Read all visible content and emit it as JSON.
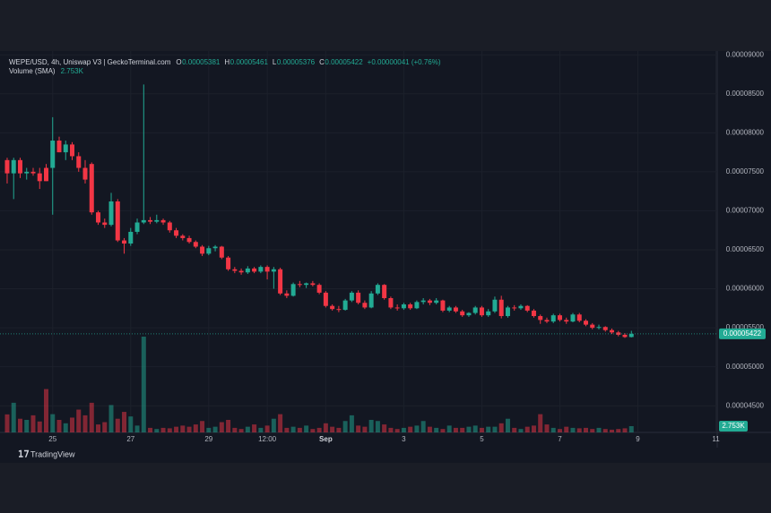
{
  "chart_data": {
    "type": "candlestick",
    "title": "WEPE/USD, 4h, Uniswap V3 | GeckoTerminal.com",
    "ohlc_readout": [
      {
        "label": "O",
        "value": "0.00005381"
      },
      {
        "label": "H",
        "value": "0.00005461"
      },
      {
        "label": "L",
        "value": "0.00005376"
      },
      {
        "label": "C",
        "value": "0.00005422"
      }
    ],
    "change": "+0.00000041 (+0.76%)",
    "volume_title": "Volume (SMA)",
    "volume_readout": "2.753K",
    "last_price_label": "0.00005422",
    "brand": "TradingView",
    "up_color": "#22ab94",
    "down_color": "#f23645",
    "grid": true,
    "xlim": [
      -1.1,
      109.2
    ],
    "xticks": [
      {
        "value": 7,
        "label": "25"
      },
      {
        "value": 19,
        "label": "27"
      },
      {
        "value": 31,
        "label": "29"
      },
      {
        "value": 40,
        "label": "12:00"
      },
      {
        "value": 49,
        "label": "Sep"
      },
      {
        "value": 61,
        "label": "3"
      },
      {
        "value": 73,
        "label": "5"
      },
      {
        "value": 85,
        "label": "7"
      },
      {
        "value": 97,
        "label": "9"
      },
      {
        "value": 109,
        "label": "11"
      }
    ],
    "ylim": [
      4.158e-05,
      9.014e-05
    ],
    "yticks": [
      {
        "value": 9e-05,
        "label": "0.00009000"
      },
      {
        "value": 8.5e-05,
        "label": "0.00008500"
      },
      {
        "value": 8e-05,
        "label": "0.00008000"
      },
      {
        "value": 7.5e-05,
        "label": "0.00007500"
      },
      {
        "value": 7e-05,
        "label": "0.00007000"
      },
      {
        "value": 6.5e-05,
        "label": "0.00006500"
      },
      {
        "value": 6e-05,
        "label": "0.00006000"
      },
      {
        "value": 5.5e-05,
        "label": "0.00005500"
      },
      {
        "value": 5e-05,
        "label": "0.00005000"
      },
      {
        "value": 4.5e-05,
        "label": "0.00004500"
      }
    ],
    "volume_ylim": [
      0,
      166000
    ],
    "ohlc": [
      [
        7.65e-05,
        7.68e-05,
        7.35e-05,
        7.48e-05
      ],
      [
        7.48e-05,
        7.68e-05,
        7.15e-05,
        7.65e-05
      ],
      [
        7.65e-05,
        7.68e-05,
        7.42e-05,
        7.48e-05
      ],
      [
        7.48e-05,
        7.55e-05,
        7.4e-05,
        7.5e-05
      ],
      [
        7.5e-05,
        7.55e-05,
        7.45e-05,
        7.48e-05
      ],
      [
        7.48e-05,
        7.55e-05,
        7.28e-05,
        7.38e-05
      ],
      [
        7.55e-05,
        7.6e-05,
        7.38e-05,
        7.38e-05
      ],
      [
        7.55e-05,
        8.2e-05,
        6.95e-05,
        7.9e-05
      ],
      [
        7.9e-05,
        7.95e-05,
        7.75e-05,
        7.75e-05
      ],
      [
        7.75e-05,
        7.9e-05,
        7.65e-05,
        7.85e-05
      ],
      [
        7.85e-05,
        7.88e-05,
        7.65e-05,
        7.7e-05
      ],
      [
        7.7e-05,
        7.75e-05,
        7.5e-05,
        7.55e-05
      ],
      [
        7.55e-05,
        7.65e-05,
        7.35e-05,
        7.4e-05
      ],
      [
        7.6e-05,
        7.62e-05,
        6.95e-05,
        6.98e-05
      ],
      [
        6.98e-05,
        7e-05,
        6.82e-05,
        6.85e-05
      ],
      [
        6.85e-05,
        6.9e-05,
        6.78e-05,
        6.82e-05
      ],
      [
        6.82e-05,
        7.23e-05,
        6.8e-05,
        7.12e-05
      ],
      [
        7.12e-05,
        7.15e-05,
        6.6e-05,
        6.62e-05
      ],
      [
        6.62e-05,
        6.65e-05,
        6.45e-05,
        6.58e-05
      ],
      [
        6.58e-05,
        6.78e-05,
        6.55e-05,
        6.73e-05
      ],
      [
        6.73e-05,
        6.9e-05,
        6.7e-05,
        6.85e-05
      ],
      [
        6.85e-05,
        8.62e-05,
        6.83e-05,
        6.88e-05
      ],
      [
        6.88e-05,
        6.92e-05,
        6.83e-05,
        6.86e-05
      ],
      [
        6.86e-05,
        6.95e-05,
        6.84e-05,
        6.88e-05
      ],
      [
        6.88e-05,
        6.9e-05,
        6.82e-05,
        6.85e-05
      ],
      [
        6.85e-05,
        6.87e-05,
        6.72e-05,
        6.75e-05
      ],
      [
        6.75e-05,
        6.78e-05,
        6.65e-05,
        6.68e-05
      ],
      [
        6.68e-05,
        6.7e-05,
        6.62e-05,
        6.65e-05
      ],
      [
        6.65e-05,
        6.68e-05,
        6.58e-05,
        6.6e-05
      ],
      [
        6.6e-05,
        6.62e-05,
        6.52e-05,
        6.54e-05
      ],
      [
        6.54e-05,
        6.56e-05,
        6.42e-05,
        6.45e-05
      ],
      [
        6.45e-05,
        6.55e-05,
        6.43e-05,
        6.52e-05
      ],
      [
        6.52e-05,
        6.56e-05,
        6.48e-05,
        6.54e-05
      ],
      [
        6.54e-05,
        6.55e-05,
        6.38e-05,
        6.4e-05
      ],
      [
        6.4e-05,
        6.42e-05,
        6.23e-05,
        6.25e-05
      ],
      [
        6.25e-05,
        6.28e-05,
        6.2e-05,
        6.23e-05
      ],
      [
        6.23e-05,
        6.26e-05,
        6.18e-05,
        6.21e-05
      ],
      [
        6.21e-05,
        6.29e-05,
        6.19e-05,
        6.26e-05
      ],
      [
        6.26e-05,
        6.28e-05,
        6.2e-05,
        6.22e-05
      ],
      [
        6.22e-05,
        6.3e-05,
        6.2e-05,
        6.28e-05
      ],
      [
        6.28e-05,
        6.3e-05,
        6.12e-05,
        6.22e-05
      ],
      [
        6.22e-05,
        6.28e-05,
        6e-05,
        6.25e-05
      ],
      [
        6.25e-05,
        6.27e-05,
        5.92e-05,
        5.94e-05
      ],
      [
        5.94e-05,
        5.98e-05,
        5.88e-05,
        5.91e-05
      ],
      [
        5.91e-05,
        6.08e-05,
        5.9e-05,
        6.06e-05
      ],
      [
        6.06e-05,
        6.1e-05,
        6.02e-05,
        6.05e-05
      ],
      [
        6.05e-05,
        6.08e-05,
        6.01e-05,
        6.07e-05
      ],
      [
        6.07e-05,
        6.1e-05,
        6.03e-05,
        6.05e-05
      ],
      [
        6.05e-05,
        6.07e-05,
        5.93e-05,
        5.95e-05
      ],
      [
        5.95e-05,
        5.97e-05,
        5.76e-05,
        5.78e-05
      ],
      [
        5.78e-05,
        5.8e-05,
        5.72e-05,
        5.74e-05
      ],
      [
        5.74e-05,
        5.78e-05,
        5.7e-05,
        5.73e-05
      ],
      [
        5.73e-05,
        5.87e-05,
        5.72e-05,
        5.85e-05
      ],
      [
        5.85e-05,
        5.97e-05,
        5.83e-05,
        5.95e-05
      ],
      [
        5.95e-05,
        5.98e-05,
        5.8e-05,
        5.82e-05
      ],
      [
        5.82e-05,
        5.85e-05,
        5.74e-05,
        5.76e-05
      ],
      [
        5.76e-05,
        5.97e-05,
        5.75e-05,
        5.94e-05
      ],
      [
        5.94e-05,
        6.07e-05,
        5.92e-05,
        6.05e-05
      ],
      [
        6.05e-05,
        6.06e-05,
        5.86e-05,
        5.88e-05
      ],
      [
        5.88e-05,
        5.9e-05,
        5.74e-05,
        5.76e-05
      ],
      [
        5.76e-05,
        5.8e-05,
        5.72e-05,
        5.75e-05
      ],
      [
        5.75e-05,
        5.82e-05,
        5.73e-05,
        5.8e-05
      ],
      [
        5.8e-05,
        5.82e-05,
        5.73e-05,
        5.75e-05
      ],
      [
        5.75e-05,
        5.85e-05,
        5.74e-05,
        5.83e-05
      ],
      [
        5.83e-05,
        5.88e-05,
        5.8e-05,
        5.85e-05
      ],
      [
        5.85e-05,
        5.87e-05,
        5.79e-05,
        5.82e-05
      ],
      [
        5.82e-05,
        5.88e-05,
        5.8e-05,
        5.85e-05
      ],
      [
        5.85e-05,
        5.86e-05,
        5.7e-05,
        5.72e-05
      ],
      [
        5.72e-05,
        5.78e-05,
        5.7e-05,
        5.76e-05
      ],
      [
        5.76e-05,
        5.78e-05,
        5.69e-05,
        5.71e-05
      ],
      [
        5.71e-05,
        5.73e-05,
        5.64e-05,
        5.66e-05
      ],
      [
        5.66e-05,
        5.7e-05,
        5.64e-05,
        5.69e-05
      ],
      [
        5.69e-05,
        5.78e-05,
        5.67e-05,
        5.76e-05
      ],
      [
        5.76e-05,
        5.78e-05,
        5.64e-05,
        5.66e-05
      ],
      [
        5.66e-05,
        5.74e-05,
        5.64e-05,
        5.71e-05
      ],
      [
        5.71e-05,
        5.9e-05,
        5.69e-05,
        5.86e-05
      ],
      [
        5.86e-05,
        5.91e-05,
        5.62e-05,
        5.65e-05
      ],
      [
        5.65e-05,
        5.78e-05,
        5.63e-05,
        5.76e-05
      ],
      [
        5.76e-05,
        5.79e-05,
        5.72e-05,
        5.75e-05
      ],
      [
        5.75e-05,
        5.8e-05,
        5.73e-05,
        5.78e-05
      ],
      [
        5.78e-05,
        5.79e-05,
        5.7e-05,
        5.72e-05
      ],
      [
        5.72e-05,
        5.74e-05,
        5.63e-05,
        5.65e-05
      ],
      [
        5.65e-05,
        5.67e-05,
        5.55e-05,
        5.6e-05
      ],
      [
        5.6e-05,
        5.63e-05,
        5.56e-05,
        5.58e-05
      ],
      [
        5.58e-05,
        5.68e-05,
        5.56e-05,
        5.66e-05
      ],
      [
        5.66e-05,
        5.68e-05,
        5.58e-05,
        5.6e-05
      ],
      [
        5.6e-05,
        5.63e-05,
        5.55e-05,
        5.58e-05
      ],
      [
        5.58e-05,
        5.69e-05,
        5.57e-05,
        5.67e-05
      ],
      [
        5.67e-05,
        5.69e-05,
        5.57e-05,
        5.59e-05
      ],
      [
        5.59e-05,
        5.61e-05,
        5.52e-05,
        5.54e-05
      ],
      [
        5.54e-05,
        5.56e-05,
        5.48e-05,
        5.5e-05
      ],
      [
        5.5e-05,
        5.54e-05,
        5.48e-05,
        5.51e-05
      ],
      [
        5.51e-05,
        5.52e-05,
        5.45e-05,
        5.47e-05
      ],
      [
        5.47e-05,
        5.49e-05,
        5.42e-05,
        5.44e-05
      ],
      [
        5.44e-05,
        5.46e-05,
        5.39e-05,
        5.41e-05
      ],
      [
        5.41e-05,
        5.43e-05,
        5.37e-05,
        5.381e-05
      ],
      [
        5.381e-05,
        5.461e-05,
        5.376e-05,
        5.422e-05
      ]
    ],
    "volume": [
      7900,
      13000,
      6000,
      5500,
      7500,
      4800,
      19000,
      8000,
      5500,
      4000,
      6500,
      10000,
      7500,
      13000,
      3500,
      4500,
      12000,
      6000,
      9000,
      7000,
      3000,
      42000,
      2000,
      1500,
      2000,
      1800,
      2500,
      3000,
      2500,
      3500,
      5000,
      2000,
      2500,
      4500,
      5500,
      2000,
      1500,
      2500,
      3500,
      2000,
      3000,
      6000,
      8000,
      2000,
      2500,
      2000,
      3000,
      1500,
      2000,
      4000,
      2500,
      2000,
      5000,
      7500,
      3000,
      2500,
      5500,
      5000,
      3500,
      2000,
      1500,
      2000,
      2500,
      3000,
      5000,
      2500,
      2000,
      1500,
      3000,
      2000,
      2000,
      2500,
      3000,
      2000,
      2500,
      2500,
      4000,
      6000,
      2000,
      1500,
      2500,
      3000,
      8000,
      3500,
      2000,
      1500,
      2500,
      2000,
      1800,
      2000,
      1500,
      2000,
      1500,
      1200,
      1500,
      1800,
      2753
    ]
  }
}
